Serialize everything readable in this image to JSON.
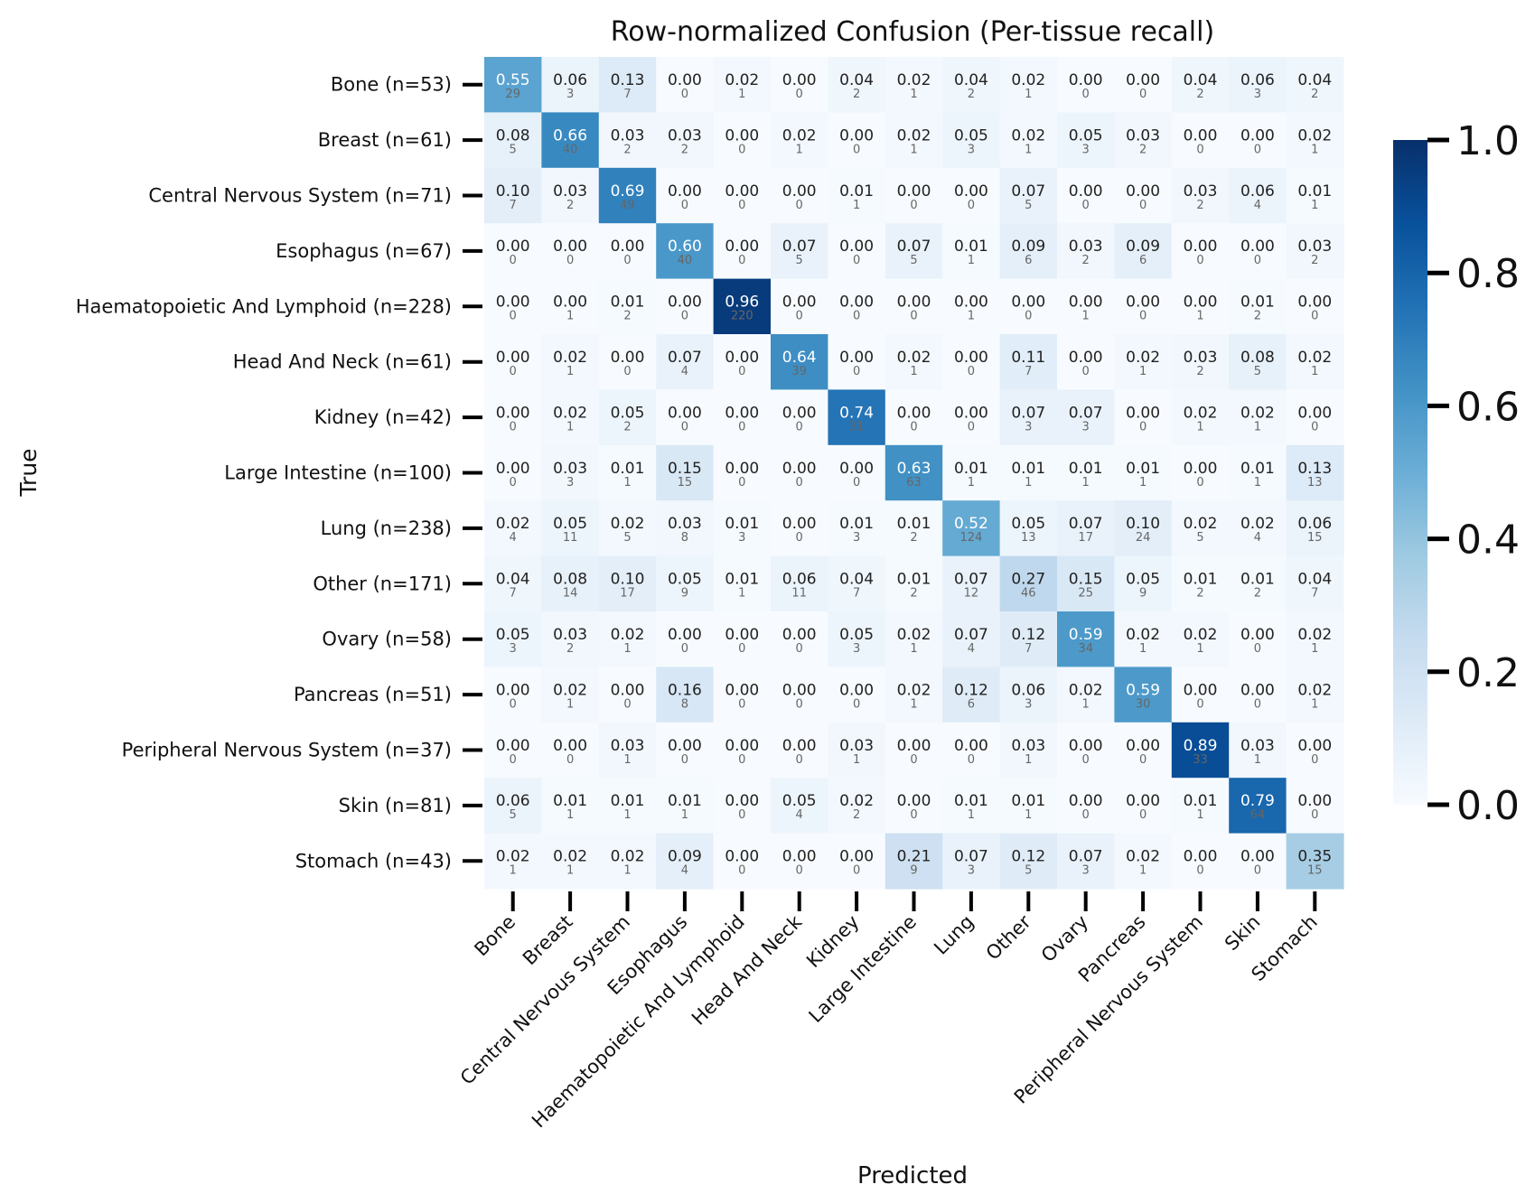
{
  "chart_data": {
    "type": "heatmap",
    "title": "Row-normalized Confusion (Per-tissue recall)",
    "xlabel": "Predicted",
    "ylabel": "True",
    "x_categories": [
      "Bone",
      "Breast",
      "Central Nervous System",
      "Esophagus",
      "Haematopoietic And Lymphoid",
      "Head And Neck",
      "Kidney",
      "Large Intestine",
      "Lung",
      "Other",
      "Ovary",
      "Pancreas",
      "Peripheral Nervous System",
      "Skin",
      "Stomach"
    ],
    "y_categories": [
      "Bone (n=53)",
      "Breast (n=61)",
      "Central Nervous System (n=71)",
      "Esophagus (n=67)",
      "Haematopoietic And Lymphoid (n=228)",
      "Head And Neck (n=61)",
      "Kidney (n=42)",
      "Large Intestine (n=100)",
      "Lung (n=238)",
      "Other (n=171)",
      "Ovary (n=58)",
      "Pancreas (n=51)",
      "Peripheral Nervous System (n=37)",
      "Skin (n=81)",
      "Stomach (n=43)"
    ],
    "values": [
      [
        "0.55",
        "0.06",
        "0.13",
        "0.00",
        "0.02",
        "0.00",
        "0.04",
        "0.02",
        "0.04",
        "0.02",
        "0.00",
        "0.00",
        "0.04",
        "0.06",
        "0.04"
      ],
      [
        "0.08",
        "0.66",
        "0.03",
        "0.03",
        "0.00",
        "0.02",
        "0.00",
        "0.02",
        "0.05",
        "0.02",
        "0.05",
        "0.03",
        "0.00",
        "0.00",
        "0.02"
      ],
      [
        "0.10",
        "0.03",
        "0.69",
        "0.00",
        "0.00",
        "0.00",
        "0.01",
        "0.00",
        "0.00",
        "0.07",
        "0.00",
        "0.00",
        "0.03",
        "0.06",
        "0.01"
      ],
      [
        "0.00",
        "0.00",
        "0.00",
        "0.60",
        "0.00",
        "0.07",
        "0.00",
        "0.07",
        "0.01",
        "0.09",
        "0.03",
        "0.09",
        "0.00",
        "0.00",
        "0.03"
      ],
      [
        "0.00",
        "0.00",
        "0.01",
        "0.00",
        "0.96",
        "0.00",
        "0.00",
        "0.00",
        "0.00",
        "0.00",
        "0.00",
        "0.00",
        "0.00",
        "0.01",
        "0.00"
      ],
      [
        "0.00",
        "0.02",
        "0.00",
        "0.07",
        "0.00",
        "0.64",
        "0.00",
        "0.02",
        "0.00",
        "0.11",
        "0.00",
        "0.02",
        "0.03",
        "0.08",
        "0.02"
      ],
      [
        "0.00",
        "0.02",
        "0.05",
        "0.00",
        "0.00",
        "0.00",
        "0.74",
        "0.00",
        "0.00",
        "0.07",
        "0.07",
        "0.00",
        "0.02",
        "0.02",
        "0.00"
      ],
      [
        "0.00",
        "0.03",
        "0.01",
        "0.15",
        "0.00",
        "0.00",
        "0.00",
        "0.63",
        "0.01",
        "0.01",
        "0.01",
        "0.01",
        "0.00",
        "0.01",
        "0.13"
      ],
      [
        "0.02",
        "0.05",
        "0.02",
        "0.03",
        "0.01",
        "0.00",
        "0.01",
        "0.01",
        "0.52",
        "0.05",
        "0.07",
        "0.10",
        "0.02",
        "0.02",
        "0.06"
      ],
      [
        "0.04",
        "0.08",
        "0.10",
        "0.05",
        "0.01",
        "0.06",
        "0.04",
        "0.01",
        "0.07",
        "0.27",
        "0.15",
        "0.05",
        "0.01",
        "0.01",
        "0.04"
      ],
      [
        "0.05",
        "0.03",
        "0.02",
        "0.00",
        "0.00",
        "0.00",
        "0.05",
        "0.02",
        "0.07",
        "0.12",
        "0.59",
        "0.02",
        "0.02",
        "0.00",
        "0.02"
      ],
      [
        "0.00",
        "0.02",
        "0.00",
        "0.16",
        "0.00",
        "0.00",
        "0.00",
        "0.02",
        "0.12",
        "0.06",
        "0.02",
        "0.59",
        "0.00",
        "0.00",
        "0.02"
      ],
      [
        "0.00",
        "0.00",
        "0.03",
        "0.00",
        "0.00",
        "0.00",
        "0.03",
        "0.00",
        "0.00",
        "0.03",
        "0.00",
        "0.00",
        "0.89",
        "0.03",
        "0.00"
      ],
      [
        "0.06",
        "0.01",
        "0.01",
        "0.01",
        "0.00",
        "0.05",
        "0.02",
        "0.00",
        "0.01",
        "0.01",
        "0.00",
        "0.00",
        "0.01",
        "0.79",
        "0.00"
      ],
      [
        "0.02",
        "0.02",
        "0.02",
        "0.09",
        "0.00",
        "0.00",
        "0.00",
        "0.21",
        "0.07",
        "0.12",
        "0.07",
        "0.02",
        "0.00",
        "0.00",
        "0.35"
      ]
    ],
    "counts": [
      [
        "29",
        "3",
        "7",
        "0",
        "1",
        "0",
        "2",
        "1",
        "2",
        "1",
        "0",
        "0",
        "2",
        "3",
        "2"
      ],
      [
        "5",
        "40",
        "2",
        "2",
        "0",
        "1",
        "0",
        "1",
        "3",
        "1",
        "3",
        "2",
        "0",
        "0",
        "1"
      ],
      [
        "7",
        "2",
        "49",
        "0",
        "0",
        "0",
        "1",
        "0",
        "0",
        "5",
        "0",
        "0",
        "2",
        "4",
        "1"
      ],
      [
        "0",
        "0",
        "0",
        "40",
        "0",
        "5",
        "0",
        "5",
        "1",
        "6",
        "2",
        "6",
        "0",
        "0",
        "2"
      ],
      [
        "0",
        "1",
        "2",
        "0",
        "220",
        "0",
        "0",
        "0",
        "1",
        "0",
        "1",
        "0",
        "1",
        "2",
        "0"
      ],
      [
        "0",
        "1",
        "0",
        "4",
        "0",
        "39",
        "0",
        "1",
        "0",
        "7",
        "0",
        "1",
        "2",
        "5",
        "1"
      ],
      [
        "0",
        "1",
        "2",
        "0",
        "0",
        "0",
        "31",
        "0",
        "0",
        "3",
        "3",
        "0",
        "1",
        "1",
        "0"
      ],
      [
        "0",
        "3",
        "1",
        "15",
        "0",
        "0",
        "0",
        "63",
        "1",
        "1",
        "1",
        "1",
        "0",
        "1",
        "13"
      ],
      [
        "4",
        "11",
        "5",
        "8",
        "3",
        "0",
        "3",
        "2",
        "124",
        "13",
        "17",
        "24",
        "5",
        "4",
        "15"
      ],
      [
        "7",
        "14",
        "17",
        "9",
        "1",
        "11",
        "7",
        "2",
        "12",
        "46",
        "25",
        "9",
        "2",
        "2",
        "7"
      ],
      [
        "3",
        "2",
        "1",
        "0",
        "0",
        "0",
        "3",
        "1",
        "4",
        "7",
        "34",
        "1",
        "1",
        "0",
        "1"
      ],
      [
        "0",
        "1",
        "0",
        "8",
        "0",
        "0",
        "0",
        "1",
        "6",
        "3",
        "1",
        "30",
        "0",
        "0",
        "1"
      ],
      [
        "0",
        "0",
        "1",
        "0",
        "0",
        "0",
        "1",
        "0",
        "0",
        "1",
        "0",
        "0",
        "33",
        "1",
        "0"
      ],
      [
        "5",
        "1",
        "1",
        "1",
        "0",
        "4",
        "2",
        "0",
        "1",
        "1",
        "0",
        "0",
        "1",
        "64",
        "0"
      ],
      [
        "1",
        "1",
        "1",
        "4",
        "0",
        "0",
        "0",
        "9",
        "3",
        "5",
        "3",
        "1",
        "0",
        "0",
        "15"
      ]
    ],
    "colorbar": {
      "colormap": "Blues",
      "range": [
        0.0,
        1.0
      ],
      "ticks": [
        "0.0",
        "0.2",
        "0.4",
        "0.6",
        "0.8",
        "1.0"
      ]
    },
    "grid": false
  }
}
